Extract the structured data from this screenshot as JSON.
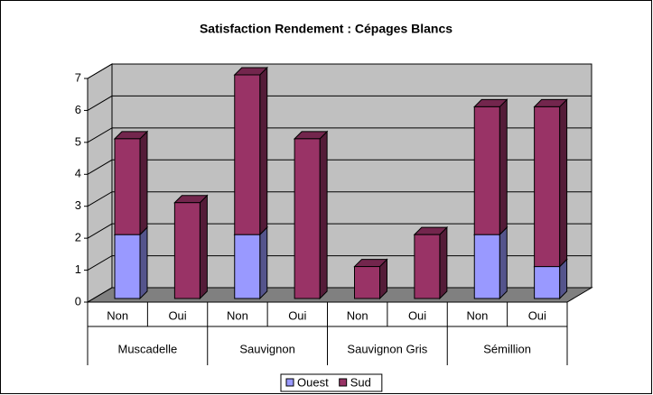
{
  "chart_data": {
    "type": "bar3d_stacked",
    "title": "Satisfaction Rendement : Cépages Blancs",
    "categories": [
      "Non",
      "Oui",
      "Non",
      "Oui",
      "Non",
      "Oui",
      "Non",
      "Oui"
    ],
    "category_groups": [
      "Muscadelle",
      "Sauvignon",
      "Sauvignon Gris",
      "Sémillion"
    ],
    "series": [
      {
        "name": "Ouest",
        "color": "#9999ff",
        "values": [
          2,
          0,
          2,
          0,
          0,
          0,
          2,
          1
        ]
      },
      {
        "name": "Sud",
        "color": "#993366",
        "values": [
          3,
          3,
          5,
          5,
          1,
          2,
          4,
          5
        ]
      }
    ],
    "ylim": [
      0,
      7
    ],
    "yticks": [
      0,
      1,
      2,
      3,
      4,
      5,
      6,
      7
    ],
    "grid": true,
    "legend": "bottom"
  }
}
